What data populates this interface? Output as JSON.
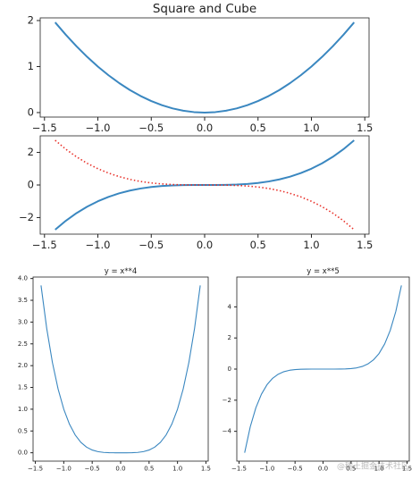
{
  "chart_data": [
    {
      "type": "line",
      "title": "Square and Cube",
      "x": [
        -1.4,
        -1.3,
        -1.2,
        -1.1,
        -1.0,
        -0.9,
        -0.8,
        -0.7,
        -0.6,
        -0.5,
        -0.4,
        -0.3,
        -0.2,
        -0.1,
        0,
        0.1,
        0.2,
        0.3,
        0.4,
        0.5,
        0.6,
        0.7,
        0.8,
        0.9,
        1.0,
        1.1,
        1.2,
        1.3,
        1.4
      ],
      "series": [
        {
          "color": "#3a87c0",
          "linestyle": "solid",
          "values": [
            1.96,
            1.69,
            1.44,
            1.21,
            1,
            0.81,
            0.64,
            0.49,
            0.36,
            0.25,
            0.16,
            0.09,
            0.04,
            0.01,
            0,
            0.01,
            0.04,
            0.09,
            0.16,
            0.25,
            0.36,
            0.49,
            0.64,
            0.81,
            1,
            1.21,
            1.44,
            1.69,
            1.96
          ]
        }
      ],
      "xlim": [
        -1.54,
        1.54
      ],
      "ylim": [
        -0.098,
        2.058
      ],
      "xticks": [
        {
          "value": -1.5,
          "label": "−1.5"
        },
        {
          "value": -1.0,
          "label": "−1.0"
        },
        {
          "value": -0.5,
          "label": "−0.5"
        },
        {
          "value": 0.0,
          "label": "0.0"
        },
        0.5,
        {
          "value": 1.0,
          "label": "1.0"
        },
        1.5
      ],
      "yticks": [
        0,
        1,
        2
      ]
    },
    {
      "type": "line",
      "x": [
        -1.4,
        -1.3,
        -1.2,
        -1.1,
        -1.0,
        -0.9,
        -0.8,
        -0.7,
        -0.6,
        -0.5,
        -0.4,
        -0.3,
        -0.2,
        -0.1,
        0,
        0.1,
        0.2,
        0.3,
        0.4,
        0.5,
        0.6,
        0.7,
        0.8,
        0.9,
        1.0,
        1.1,
        1.2,
        1.3,
        1.4
      ],
      "series": [
        {
          "color": "#3a87c0",
          "linestyle": "solid",
          "values": [
            -2.744,
            -2.197,
            -1.728,
            -1.331,
            -1,
            -0.729,
            -0.512,
            -0.343,
            -0.216,
            -0.125,
            -0.064,
            -0.027,
            -0.008,
            -0.001,
            0,
            0.001,
            0.008,
            0.027,
            0.064,
            0.125,
            0.216,
            0.343,
            0.512,
            0.729,
            1,
            1.331,
            1.728,
            2.197,
            2.744
          ]
        },
        {
          "color": "#e8312a",
          "linestyle": "dotted",
          "values": [
            2.744,
            2.197,
            1.728,
            1.331,
            1,
            0.729,
            0.512,
            0.343,
            0.216,
            0.125,
            0.064,
            0.027,
            0.008,
            0.001,
            0,
            -0.001,
            -0.008,
            -0.027,
            -0.064,
            -0.125,
            -0.216,
            -0.343,
            -0.512,
            -0.729,
            -1,
            -1.331,
            -1.728,
            -2.197,
            -2.744
          ]
        }
      ],
      "xlim": [
        -1.54,
        1.54
      ],
      "ylim": [
        -3.018,
        3.018
      ],
      "xticks": [
        {
          "value": -1.5,
          "label": "−1.5"
        },
        {
          "value": -1.0,
          "label": "−1.0"
        },
        {
          "value": -0.5,
          "label": "−0.5"
        },
        {
          "value": 0.0,
          "label": "0.0"
        },
        0.5,
        {
          "value": 1.0,
          "label": "1.0"
        },
        1.5
      ],
      "yticks": [
        {
          "value": -2,
          "label": "−2"
        },
        0,
        2
      ]
    },
    {
      "type": "line",
      "title": "y = x**4",
      "x": [
        -1.4,
        -1.3,
        -1.2,
        -1.1,
        -1.0,
        -0.9,
        -0.8,
        -0.7,
        -0.6,
        -0.5,
        -0.4,
        -0.3,
        -0.2,
        -0.1,
        0,
        0.1,
        0.2,
        0.3,
        0.4,
        0.5,
        0.6,
        0.7,
        0.8,
        0.9,
        1.0,
        1.1,
        1.2,
        1.3,
        1.4
      ],
      "series": [
        {
          "color": "#3a87c0",
          "linestyle": "solid",
          "values": [
            3.8416,
            2.8561,
            2.0736,
            1.4641,
            1,
            0.6561,
            0.4096,
            0.2401,
            0.1296,
            0.0625,
            0.0256,
            0.0081,
            0.0016,
            0.0001,
            0,
            0.0001,
            0.0016,
            0.0081,
            0.0256,
            0.0625,
            0.1296,
            0.2401,
            0.4096,
            0.6561,
            1,
            1.4641,
            2.0736,
            2.8561,
            3.8416
          ]
        }
      ],
      "xlim": [
        -1.54,
        1.54
      ],
      "ylim": [
        -0.192,
        4.034
      ],
      "xticks": [
        {
          "value": -1.5,
          "label": "−1.5"
        },
        {
          "value": -1.0,
          "label": "−1.0"
        },
        {
          "value": -0.5,
          "label": "−0.5"
        },
        {
          "value": 0.0,
          "label": "0.0"
        },
        0.5,
        {
          "value": 1.0,
          "label": "1.0"
        },
        1.5
      ],
      "yticks": [
        {
          "value": 0.0,
          "label": "0.0"
        },
        0.5,
        {
          "value": 1.0,
          "label": "1.0"
        },
        1.5,
        {
          "value": 2.0,
          "label": "2.0"
        },
        2.5,
        {
          "value": 3.0,
          "label": "3.0"
        },
        3.5,
        {
          "value": 4.0,
          "label": "4.0"
        }
      ]
    },
    {
      "type": "line",
      "title": "y = x**5",
      "x": [
        -1.4,
        -1.3,
        -1.2,
        -1.1,
        -1.0,
        -0.9,
        -0.8,
        -0.7,
        -0.6,
        -0.5,
        -0.4,
        -0.3,
        -0.2,
        -0.1,
        0,
        0.1,
        0.2,
        0.3,
        0.4,
        0.5,
        0.6,
        0.7,
        0.8,
        0.9,
        1.0,
        1.1,
        1.2,
        1.3,
        1.4
      ],
      "series": [
        {
          "color": "#3a87c0",
          "linestyle": "solid",
          "values": [
            -5.37824,
            -3.71293,
            -2.48832,
            -1.61051,
            -1,
            -0.59049,
            -0.32768,
            -0.16807,
            -0.07776,
            -0.03125,
            -0.01024,
            -0.00243,
            -0.00032,
            -1e-05,
            0,
            1e-05,
            0.00032,
            0.00243,
            0.01024,
            0.03125,
            0.07776,
            0.16807,
            0.32768,
            0.59049,
            1,
            1.61051,
            2.48832,
            3.71293,
            5.37824
          ]
        }
      ],
      "xlim": [
        -1.54,
        1.54
      ],
      "ylim": [
        -5.916,
        5.916
      ],
      "xticks": [
        {
          "value": -1.5,
          "label": "−1.5"
        },
        {
          "value": -1.0,
          "label": "−1.0"
        },
        {
          "value": -0.5,
          "label": "−0.5"
        },
        {
          "value": 0.0,
          "label": "0.0"
        },
        0.5,
        {
          "value": 1.0,
          "label": "1.0"
        },
        1.5
      ],
      "yticks": [
        {
          "value": -4,
          "label": "−4"
        },
        {
          "value": -2,
          "label": "−2"
        },
        0,
        2,
        4
      ]
    }
  ],
  "watermark": "@稀土掘金技术社区"
}
